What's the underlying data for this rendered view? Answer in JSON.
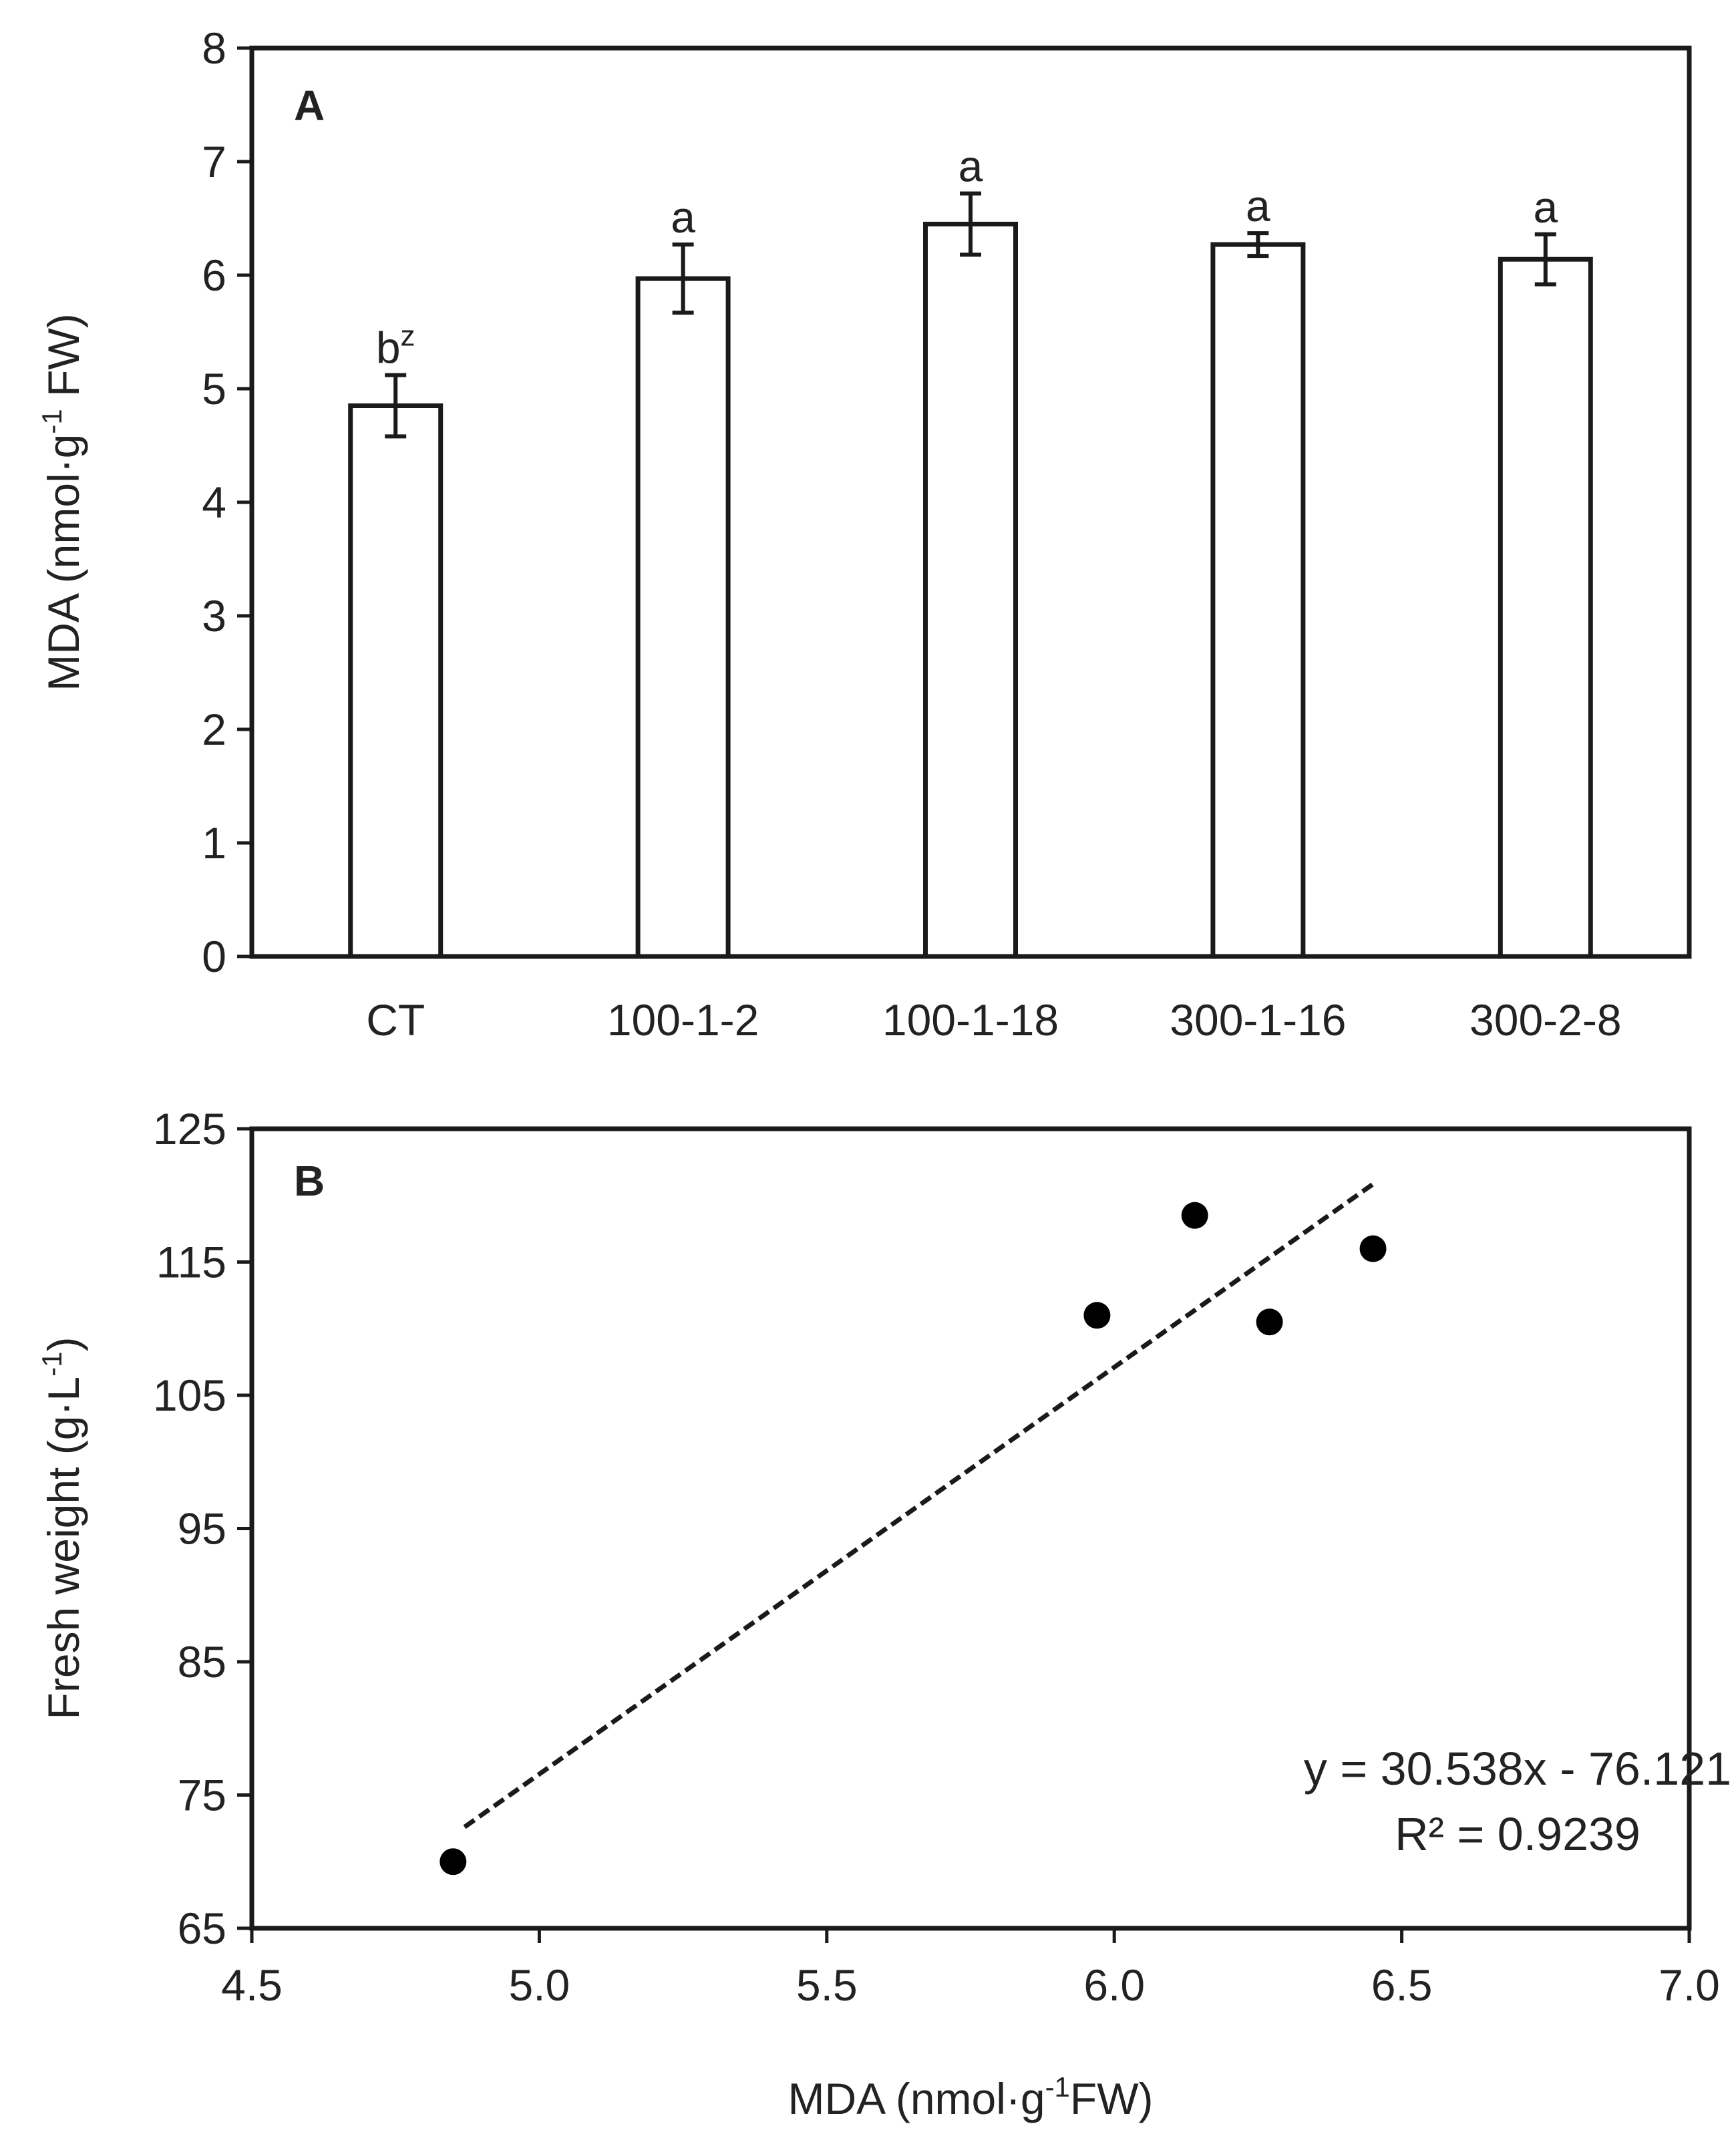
{
  "chart_data": [
    {
      "type": "bar",
      "panel_label": "A",
      "categories": [
        "CT",
        "100-1-2",
        "100-1-18",
        "300-1-16",
        "300-2-8"
      ],
      "values": [
        4.85,
        5.97,
        6.45,
        6.27,
        6.14
      ],
      "errors": [
        0.27,
        0.3,
        0.27,
        0.1,
        0.22
      ],
      "significance": [
        "b",
        "a",
        "a",
        "a",
        "a"
      ],
      "significance_superscript": [
        "z",
        "",
        "",
        "",
        ""
      ],
      "ylabel": "MDA (nmol·g",
      "ylabel_sup": "-1",
      "ylabel_tail": " FW)",
      "xlabel": "",
      "ylim": [
        0,
        8
      ],
      "yticks": [
        0,
        1,
        2,
        3,
        4,
        5,
        6,
        7,
        8
      ],
      "bar_fill": "#ffffff",
      "bar_stroke": "#1a1a1a"
    },
    {
      "type": "scatter",
      "panel_label": "B",
      "x": [
        4.85,
        5.97,
        6.14,
        6.27,
        6.45
      ],
      "y": [
        70,
        111,
        118.5,
        110.5,
        116
      ],
      "xlim": [
        4.5,
        7.0
      ],
      "ylim": [
        65,
        125
      ],
      "xticks": [
        "4.5",
        "5.0",
        "5.5",
        "6.0",
        "6.5",
        "7.0"
      ],
      "yticks": [
        65,
        75,
        85,
        95,
        105,
        115,
        125
      ],
      "xlabel": "MDA (nmol·g",
      "xlabel_sup": "-1",
      "xlabel_tail": "FW)",
      "ylabel": "Fresh weight (g·L",
      "ylabel_sup": "-1",
      "ylabel_tail": ")",
      "trendline": {
        "slope": 30.538,
        "intercept": -76.121,
        "x_range": [
          4.87,
          6.45
        ],
        "style": "dashed"
      },
      "equation_text": "y = 30.538x - 76.121",
      "r_squared_text": "R² = 0.9239",
      "marker_color": "#000000"
    }
  ]
}
